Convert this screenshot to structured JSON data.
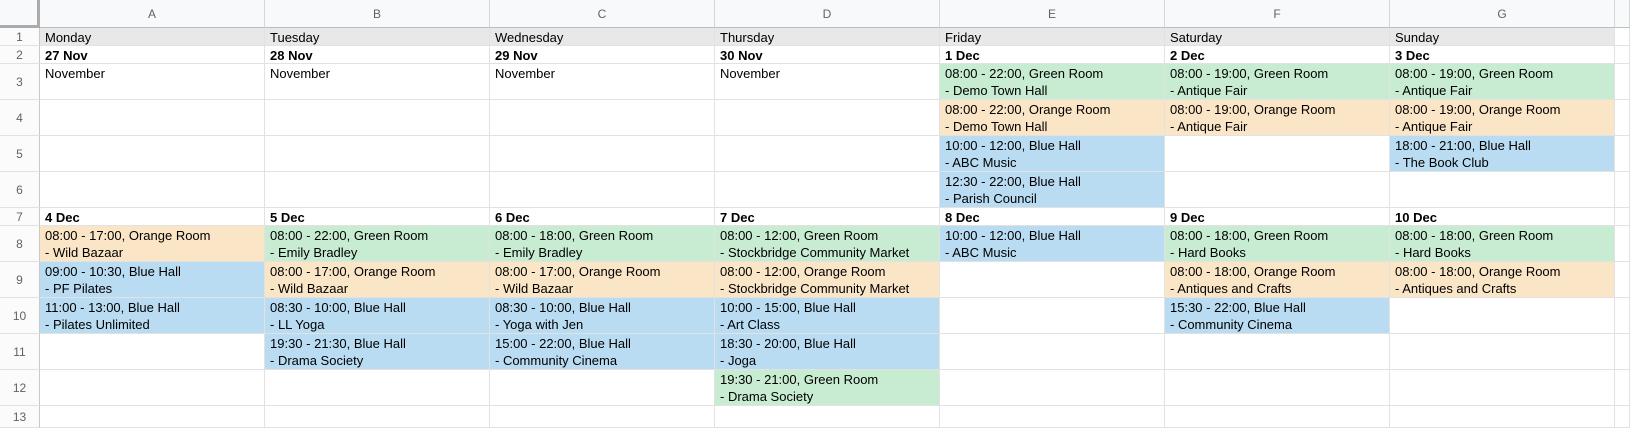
{
  "app": {
    "kind": "spreadsheet-calendar"
  },
  "palette": {
    "green": "#c7ecd1",
    "orange": "#fbe5c7",
    "blue": "#b9dcf2",
    "day": "#e8e8e8",
    "header_bg": "#f8f9fa",
    "gridline": "#e2e2e2",
    "header_text": "#5f6368"
  },
  "column_headers": [
    "A",
    "B",
    "C",
    "D",
    "E",
    "F",
    "G"
  ],
  "row_numbers": [
    "1",
    "2",
    "3",
    "4",
    "5",
    "6",
    "7",
    "8",
    "9",
    "10",
    "11",
    "12",
    "13"
  ],
  "cells": {
    "A1": {
      "lines": [
        "Monday"
      ],
      "fill": "day"
    },
    "B1": {
      "lines": [
        "Tuesday"
      ],
      "fill": "day"
    },
    "C1": {
      "lines": [
        "Wednesday"
      ],
      "fill": "day"
    },
    "D1": {
      "lines": [
        "Thursday"
      ],
      "fill": "day"
    },
    "E1": {
      "lines": [
        "Friday"
      ],
      "fill": "day"
    },
    "F1": {
      "lines": [
        "Saturday"
      ],
      "fill": "day"
    },
    "G1": {
      "lines": [
        "Sunday"
      ],
      "fill": "day"
    },
    "A2": {
      "lines": [
        "27 Nov"
      ],
      "bold": true
    },
    "B2": {
      "lines": [
        "28 Nov"
      ],
      "bold": true
    },
    "C2": {
      "lines": [
        "29 Nov"
      ],
      "bold": true
    },
    "D2": {
      "lines": [
        "30 Nov"
      ],
      "bold": true
    },
    "E2": {
      "lines": [
        "1 Dec"
      ],
      "bold": true
    },
    "F2": {
      "lines": [
        "2 Dec"
      ],
      "bold": true
    },
    "G2": {
      "lines": [
        "3 Dec"
      ],
      "bold": true
    },
    "A3": {
      "lines": [
        "November"
      ]
    },
    "B3": {
      "lines": [
        "November"
      ]
    },
    "C3": {
      "lines": [
        "November"
      ]
    },
    "D3": {
      "lines": [
        "November"
      ]
    },
    "E3": {
      "lines": [
        "08:00 - 22:00, Green Room",
        "- Demo Town Hall"
      ],
      "fill": "green"
    },
    "F3": {
      "lines": [
        "08:00 - 19:00, Green Room",
        "- Antique Fair"
      ],
      "fill": "green"
    },
    "G3": {
      "lines": [
        "08:00 - 19:00, Green Room",
        "- Antique Fair"
      ],
      "fill": "green"
    },
    "E4": {
      "lines": [
        "08:00 - 22:00, Orange Room",
        "- Demo Town Hall"
      ],
      "fill": "orange"
    },
    "F4": {
      "lines": [
        "08:00 - 19:00, Orange Room",
        "- Antique Fair"
      ],
      "fill": "orange"
    },
    "G4": {
      "lines": [
        "08:00 - 19:00, Orange Room",
        "- Antique Fair"
      ],
      "fill": "orange"
    },
    "E5": {
      "lines": [
        "10:00 - 12:00, Blue Hall",
        "- ABC Music"
      ],
      "fill": "blue"
    },
    "G5": {
      "lines": [
        "18:00 - 21:00, Blue Hall",
        "- The Book Club"
      ],
      "fill": "blue"
    },
    "E6": {
      "lines": [
        "12:30 - 22:00, Blue Hall",
        "- Parish Council"
      ],
      "fill": "blue"
    },
    "A7": {
      "lines": [
        "4 Dec"
      ],
      "bold": true
    },
    "B7": {
      "lines": [
        "5 Dec"
      ],
      "bold": true
    },
    "C7": {
      "lines": [
        "6 Dec"
      ],
      "bold": true
    },
    "D7": {
      "lines": [
        "7 Dec"
      ],
      "bold": true
    },
    "E7": {
      "lines": [
        "8 Dec"
      ],
      "bold": true
    },
    "F7": {
      "lines": [
        "9 Dec"
      ],
      "bold": true
    },
    "G7": {
      "lines": [
        "10 Dec"
      ],
      "bold": true
    },
    "A8": {
      "lines": [
        "08:00 - 17:00, Orange Room",
        "- Wild Bazaar"
      ],
      "fill": "orange"
    },
    "B8": {
      "lines": [
        "08:00 - 22:00, Green Room",
        "- Emily Bradley"
      ],
      "fill": "green"
    },
    "C8": {
      "lines": [
        "08:00 - 18:00, Green Room",
        "- Emily Bradley"
      ],
      "fill": "green"
    },
    "D8": {
      "lines": [
        "08:00 - 12:00, Green Room",
        "- Stockbridge Community Market"
      ],
      "fill": "green"
    },
    "E8": {
      "lines": [
        "10:00 - 12:00, Blue Hall",
        "- ABC Music"
      ],
      "fill": "blue"
    },
    "F8": {
      "lines": [
        "08:00 - 18:00, Green Room",
        "- Hard Books"
      ],
      "fill": "green"
    },
    "G8": {
      "lines": [
        "08:00 - 18:00, Green Room",
        "- Hard Books"
      ],
      "fill": "green"
    },
    "A9": {
      "lines": [
        "09:00 - 10:30, Blue Hall",
        "- PF Pilates"
      ],
      "fill": "blue"
    },
    "B9": {
      "lines": [
        "08:00 - 17:00, Orange Room",
        "- Wild Bazaar"
      ],
      "fill": "orange"
    },
    "C9": {
      "lines": [
        "08:00 - 17:00, Orange Room",
        "- Wild Bazaar"
      ],
      "fill": "orange"
    },
    "D9": {
      "lines": [
        "08:00 - 12:00, Orange Room",
        "- Stockbridge Community Market"
      ],
      "fill": "orange"
    },
    "F9": {
      "lines": [
        "08:00 - 18:00, Orange Room",
        "- Antiques and Crafts"
      ],
      "fill": "orange"
    },
    "G9": {
      "lines": [
        "08:00 - 18:00, Orange Room",
        "- Antiques and Crafts"
      ],
      "fill": "orange"
    },
    "A10": {
      "lines": [
        "11:00 - 13:00, Blue Hall",
        "- Pilates Unlimited"
      ],
      "fill": "blue"
    },
    "B10": {
      "lines": [
        "08:30 - 10:00, Blue Hall",
        "- LL Yoga"
      ],
      "fill": "blue"
    },
    "C10": {
      "lines": [
        "08:30 - 10:00, Blue Hall",
        "- Yoga with Jen"
      ],
      "fill": "blue"
    },
    "D10": {
      "lines": [
        "10:00 - 15:00, Blue Hall",
        "- Art Class"
      ],
      "fill": "blue"
    },
    "F10": {
      "lines": [
        "15:30 - 22:00, Blue Hall",
        "- Community Cinema"
      ],
      "fill": "blue"
    },
    "B11": {
      "lines": [
        "19:30 - 21:30, Blue Hall",
        "- Drama Society"
      ],
      "fill": "blue"
    },
    "C11": {
      "lines": [
        "15:00 - 22:00, Blue Hall",
        "- Community Cinema"
      ],
      "fill": "blue"
    },
    "D11": {
      "lines": [
        "18:30 - 20:00, Blue Hall",
        "- Joga"
      ],
      "fill": "blue"
    },
    "D12": {
      "lines": [
        "19:30 - 21:00, Green Room",
        "- Drama Society"
      ],
      "fill": "green"
    }
  }
}
